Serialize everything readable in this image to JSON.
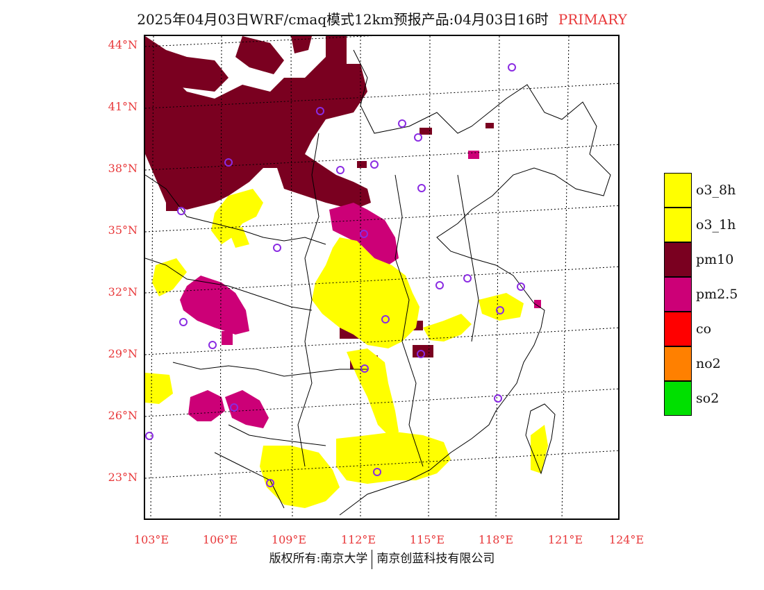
{
  "title": {
    "main": "2025年04月03日WRF/cmaq模式12km预报产品:04月03日16时",
    "tag": "PRIMARY"
  },
  "axes": {
    "lat_labels": [
      "44°N",
      "41°N",
      "38°N",
      "35°N",
      "32°N",
      "29°N",
      "26°N",
      "23°N"
    ],
    "lon_labels": [
      "103°E",
      "106°E",
      "109°E",
      "112°E",
      "115°E",
      "118°E",
      "121°E",
      "124°E"
    ]
  },
  "legend": [
    {
      "label": "o3_8h",
      "color": "#ffff00"
    },
    {
      "label": "o3_1h",
      "color": "#ffff00"
    },
    {
      "label": "pm10",
      "color": "#7a0020"
    },
    {
      "label": "pm2.5",
      "color": "#cc0077"
    },
    {
      "label": "co",
      "color": "#ff0000"
    },
    {
      "label": "no2",
      "color": "#ff8000"
    },
    {
      "label": "so2",
      "color": "#00e000"
    }
  ],
  "credit": {
    "left": "版权所有:南京大学",
    "right": "南京创蓝科技有限公司"
  },
  "colors": {
    "accent": "#e8383a",
    "pm10": "#7a0020",
    "pm25": "#cc0077",
    "o3": "#ffff00",
    "city_marker": "#8a2be2"
  }
}
